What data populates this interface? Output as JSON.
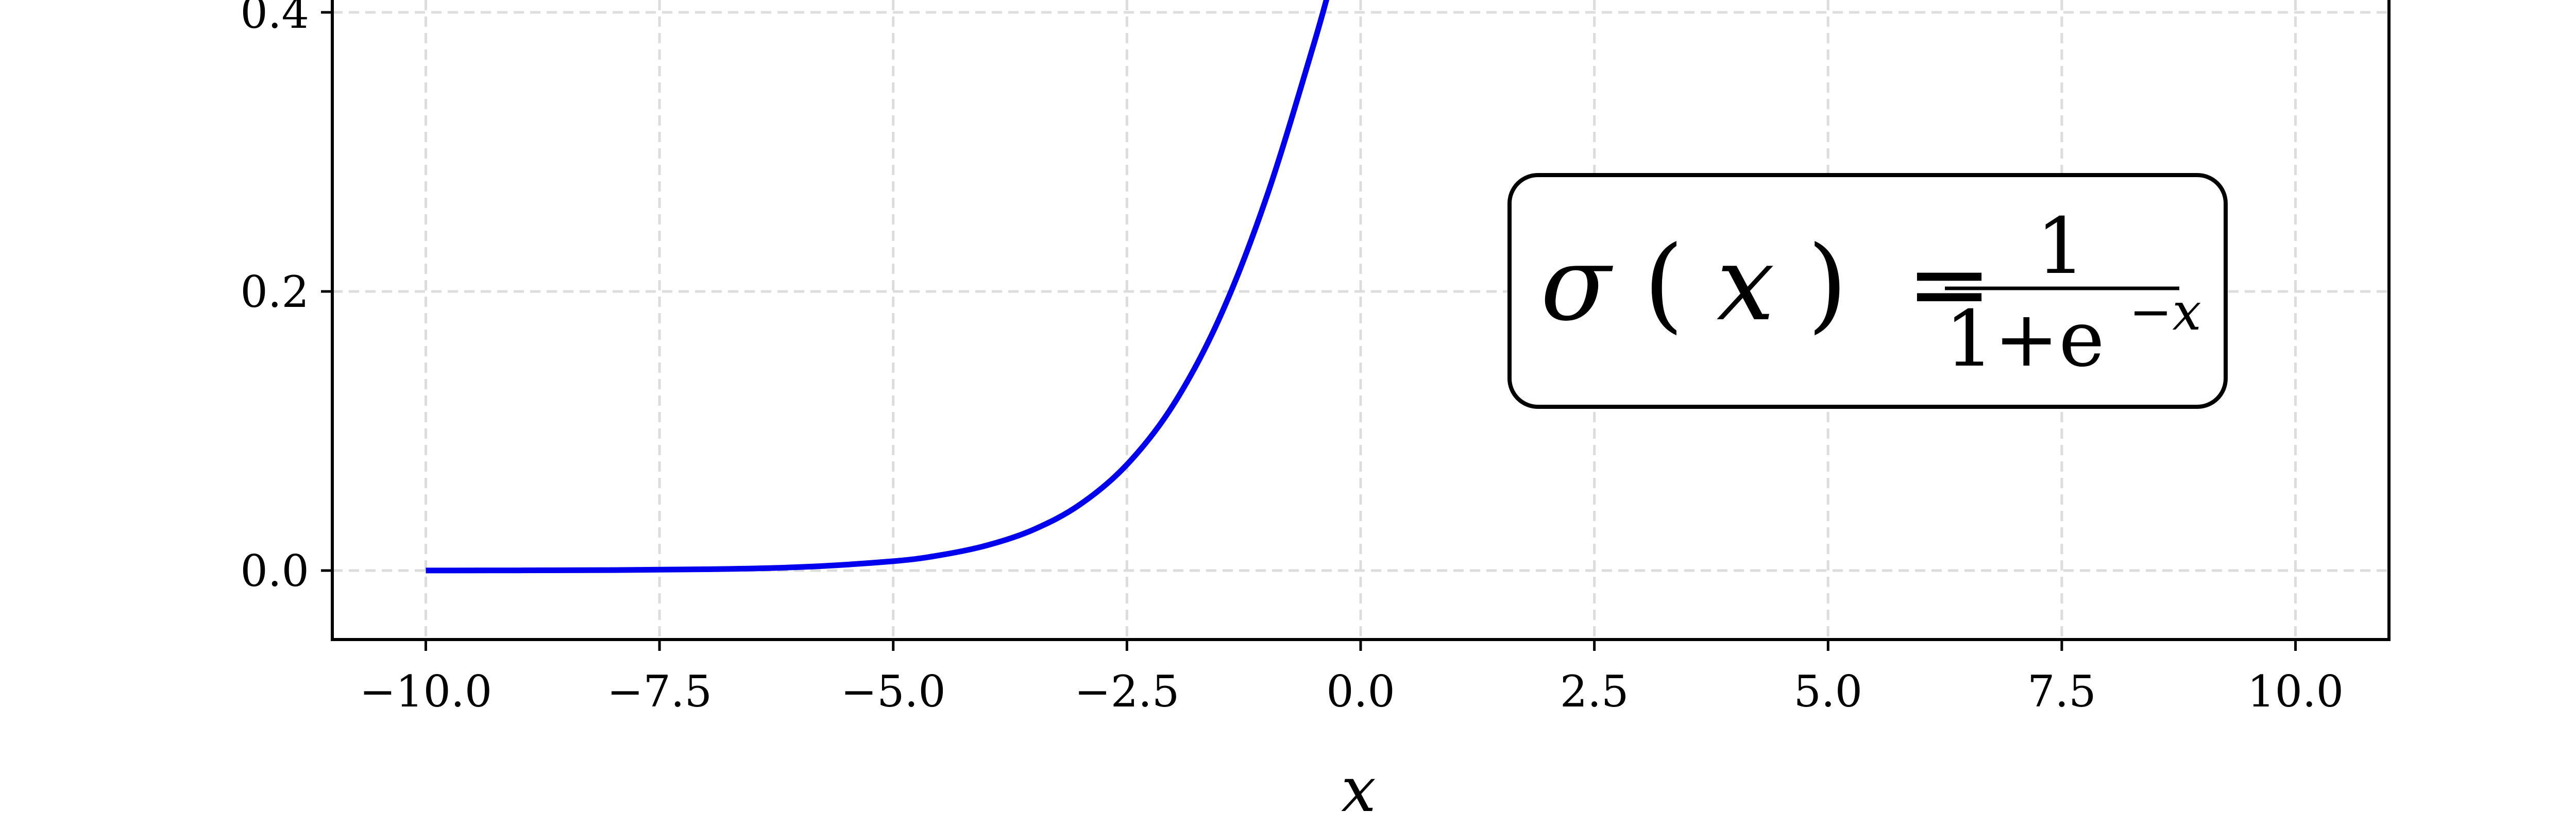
{
  "chart_data": {
    "type": "line",
    "title": "",
    "xlabel": "x",
    "ylabel": "",
    "xlim": [
      -11,
      11
    ],
    "ylim": [
      -0.05,
      0.4
    ],
    "grid": true,
    "x_ticks": [
      -10.0,
      -7.5,
      -5.0,
      -2.5,
      0.0,
      2.5,
      5.0,
      7.5,
      10.0
    ],
    "x_tick_labels": [
      "−10.0",
      "−7.5",
      "−5.0",
      "−2.5",
      "0.0",
      "2.5",
      "5.0",
      "7.5",
      "10.0"
    ],
    "y_ticks": [
      0.0,
      0.2,
      0.4
    ],
    "y_tick_labels": [
      "0.0",
      "0.2",
      "0.4"
    ],
    "series": [
      {
        "function": "sigmoid",
        "color": "#0000ee",
        "x": [
          -10,
          -9,
          -8,
          -7,
          -6,
          -5,
          -4.5,
          -4,
          -3.5,
          -3,
          -2.5,
          -2,
          -1.5,
          -1,
          -0.5,
          -0.3
        ],
        "y": [
          4.54e-05,
          0.000123,
          0.000335,
          0.000911,
          0.00247,
          0.00669,
          0.011,
          0.018,
          0.0293,
          0.0474,
          0.0759,
          0.1192,
          0.1824,
          0.2689,
          0.3775,
          0.4256
        ]
      }
    ],
    "annotation": {
      "lhs_sigma": "σ",
      "lhs_open": "(",
      "lhs_x": "x",
      "lhs_close": ")",
      "equals": "=",
      "numerator": "1",
      "denominator_base": "1+e",
      "denominator_exp": "−x"
    }
  }
}
